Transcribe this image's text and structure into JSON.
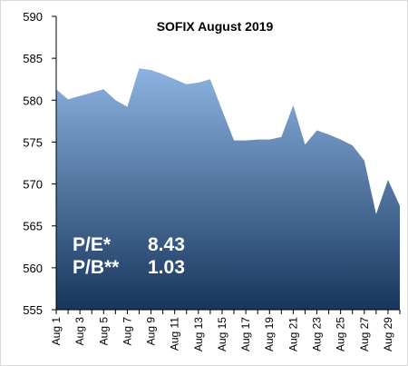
{
  "chart_data": {
    "type": "area",
    "title": "SOFIX August 2019",
    "categories": [
      "Aug 1",
      null,
      "Aug 3",
      null,
      "Aug 5",
      null,
      "Aug 7",
      null,
      "Aug 9",
      null,
      "Aug 11",
      null,
      "Aug 13",
      null,
      "Aug 15",
      null,
      "Aug 17",
      null,
      "Aug 19",
      null,
      "Aug 21",
      null,
      "Aug 23",
      null,
      "Aug 25",
      null,
      "Aug 27",
      null,
      "Aug 29",
      null
    ],
    "values": [
      581.3,
      580.1,
      580.5,
      580.9,
      581.3,
      580.0,
      579.2,
      583.8,
      583.6,
      583.1,
      582.5,
      581.9,
      582.1,
      582.5,
      578.8,
      575.2,
      575.2,
      575.3,
      575.3,
      575.6,
      579.4,
      574.7,
      576.4,
      575.9,
      575.3,
      574.6,
      572.8,
      566.4,
      570.5,
      567.4
    ],
    "color_top": "#8db3e2",
    "color_bottom": "#17365d",
    "ylim": [
      555,
      590
    ],
    "yticks": [
      555,
      560,
      565,
      570,
      575,
      580,
      585,
      590
    ],
    "grid": false,
    "annotations": [
      {
        "label": "P/E*",
        "value": 8.43
      },
      {
        "label": "P/B**",
        "value": 1.03
      }
    ]
  }
}
